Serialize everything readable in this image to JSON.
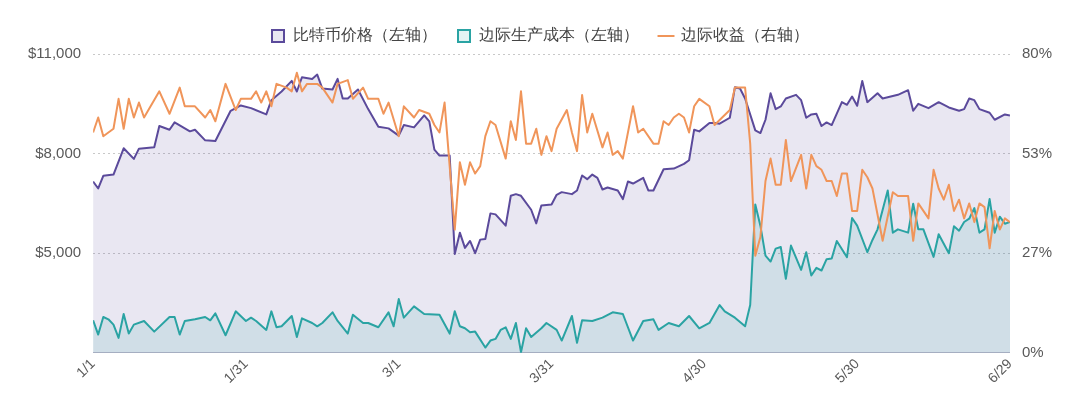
{
  "chart_data": {
    "type": "area",
    "legend": "top",
    "grid": "y",
    "marker": "none",
    "xlim": [
      "--01-01",
      "--06-29"
    ],
    "xticks": [
      {
        "value": "--01-01",
        "label": "1/1"
      },
      {
        "value": "--01-31",
        "label": "1/31"
      },
      {
        "value": "--03-01",
        "label": "3/1"
      },
      {
        "value": "--03-31",
        "label": "3/31"
      },
      {
        "value": "--04-30",
        "label": "4/30"
      },
      {
        "value": "--05-30",
        "label": "5/30"
      },
      {
        "value": "--06-29",
        "label": "6/29"
      }
    ],
    "ylim": [
      2000,
      11000
    ],
    "yticks": [
      {
        "value": 2000,
        "label": null
      },
      {
        "value": 5000,
        "label": "$5,000"
      },
      {
        "value": 8000,
        "label": "$8,000"
      },
      {
        "value": 11000,
        "label": "$11,000"
      }
    ],
    "y2lim": [
      0,
      80
    ],
    "y2ticks": [
      {
        "value": 0,
        "label": "0%"
      },
      {
        "value": 26.67,
        "label": "27%"
      },
      {
        "value": 53.33,
        "label": "53%"
      },
      {
        "value": 80,
        "label": "80%"
      }
    ],
    "series": [
      {
        "name": "比特币价格（左轴）",
        "color": "#5b4a9b",
        "x": [
          "--01-01",
          "--01-02",
          "--01-03",
          "--01-05",
          "--01-07",
          "--01-09",
          "--01-10",
          "--01-13",
          "--01-14",
          "--01-16",
          "--01-17",
          "--01-19",
          "--01-20",
          "--01-21",
          "--01-23",
          "--01-25",
          "--01-28",
          "--01-30",
          "--02-01",
          "--02-04",
          "--02-05",
          "--02-07",
          "--02-09",
          "--02-10",
          "--02-11",
          "--02-13",
          "--02-14",
          "--02-15",
          "--02-17",
          "--02-18",
          "--02-19",
          "--02-20",
          "--02-22",
          "--02-24",
          "--02-26",
          "--02-28",
          "--03-01",
          "--03-02",
          "--03-04",
          "--03-06",
          "--03-07",
          "--03-08",
          "--03-09",
          "--03-11",
          "--03-12",
          "--03-13",
          "--03-14",
          "--03-15",
          "--03-16",
          "--03-17",
          "--03-18",
          "--03-19",
          "--03-20",
          "--03-22",
          "--03-23",
          "--03-24",
          "--03-25",
          "--03-27",
          "--03-28",
          "--03-29",
          "--03-31",
          "--04-01",
          "--04-02",
          "--04-04",
          "--04-05",
          "--04-06",
          "--04-07",
          "--04-08",
          "--04-09",
          "--04-10",
          "--04-11",
          "--04-13",
          "--04-14",
          "--04-15",
          "--04-16",
          "--04-18",
          "--04-19",
          "--04-20",
          "--04-22",
          "--04-24",
          "--04-26",
          "--04-27",
          "--04-28",
          "--04-29",
          "--05-01",
          "--05-02",
          "--05-03",
          "--05-05",
          "--05-06",
          "--05-07",
          "--05-08",
          "--05-10",
          "--05-11",
          "--05-12",
          "--05-13",
          "--05-14",
          "--05-15",
          "--05-16",
          "--05-18",
          "--05-19",
          "--05-20",
          "--05-21",
          "--05-22",
          "--05-23",
          "--05-24",
          "--05-25",
          "--05-27",
          "--05-28",
          "--05-29",
          "--05-30",
          "--05-31",
          "--06-01",
          "--06-03",
          "--06-04",
          "--06-07",
          "--06-09",
          "--06-10",
          "--06-11",
          "--06-13",
          "--06-15",
          "--06-17",
          "--06-19",
          "--06-20",
          "--06-21",
          "--06-22",
          "--06-23",
          "--06-25",
          "--06-26",
          "--06-28",
          "--06-29"
        ],
        "values": [
          7160,
          6950,
          7330,
          7370,
          8160,
          7840,
          8150,
          8190,
          8830,
          8720,
          8940,
          8760,
          8670,
          8720,
          8400,
          8380,
          9290,
          9450,
          9370,
          9180,
          9610,
          9870,
          10190,
          9870,
          10300,
          10250,
          10380,
          9960,
          9930,
          10250,
          9660,
          9660,
          9930,
          9340,
          8810,
          8760,
          8540,
          8860,
          8790,
          9150,
          8970,
          8120,
          7940,
          7940,
          4980,
          5620,
          5160,
          5370,
          5000,
          5410,
          5430,
          6200,
          6170,
          5830,
          6730,
          6780,
          6730,
          6310,
          5900,
          6440,
          6470,
          6760,
          6840,
          6780,
          6890,
          7340,
          7230,
          7370,
          7270,
          6920,
          6980,
          6890,
          6630,
          7160,
          7100,
          7270,
          6890,
          6890,
          7530,
          7550,
          7690,
          7800,
          8720,
          8670,
          8920,
          8920,
          8900,
          9080,
          10000,
          9960,
          9660,
          8700,
          8620,
          9020,
          9820,
          9340,
          9420,
          9660,
          9770,
          9610,
          9080,
          9180,
          9200,
          8830,
          8940,
          8860,
          9550,
          9470,
          9720,
          9440,
          10190,
          9550,
          9820,
          9660,
          9770,
          9910,
          9290,
          9500,
          9370,
          9550,
          9390,
          9290,
          9340,
          9660,
          9610,
          9340,
          9230,
          9020,
          9180,
          9150
        ]
      },
      {
        "name": "边际生产成本（左轴）",
        "color": "#2aa3a3",
        "x": [
          "--01-01",
          "--01-02",
          "--01-03",
          "--01-04",
          "--01-05",
          "--01-06",
          "--01-07",
          "--01-08",
          "--01-09",
          "--01-11",
          "--01-13",
          "--01-16",
          "--01-17",
          "--01-18",
          "--01-19",
          "--01-21",
          "--01-23",
          "--01-24",
          "--01-25",
          "--01-27",
          "--01-29",
          "--01-31",
          "--02-01",
          "--02-02",
          "--02-04",
          "--02-05",
          "--02-06",
          "--02-07",
          "--02-09",
          "--02-10",
          "--02-11",
          "--02-13",
          "--02-14",
          "--02-15",
          "--02-17",
          "--02-18",
          "--02-20",
          "--02-21",
          "--02-23",
          "--02-24",
          "--02-26",
          "--02-28",
          "--02-29",
          "--03-01",
          "--03-02",
          "--03-04",
          "--03-06",
          "--03-09",
          "--03-11",
          "--03-12",
          "--03-13",
          "--03-14",
          "--03-15",
          "--03-16",
          "--03-18",
          "--03-19",
          "--03-20",
          "--03-21",
          "--03-22",
          "--03-23",
          "--03-24",
          "--03-25",
          "--03-26",
          "--03-27",
          "--03-29",
          "--03-30",
          "--04-01",
          "--04-02",
          "--04-04",
          "--04-05",
          "--04-06",
          "--04-08",
          "--04-10",
          "--04-12",
          "--04-14",
          "--04-16",
          "--04-18",
          "--04-20",
          "--04-21",
          "--04-23",
          "--04-25",
          "--04-27",
          "--04-29",
          "--05-01",
          "--05-03",
          "--05-04",
          "--05-06",
          "--05-08",
          "--05-09",
          "--05-10",
          "--05-11",
          "--05-12",
          "--05-13",
          "--05-14",
          "--05-15",
          "--05-16",
          "--05-17",
          "--05-19",
          "--05-20",
          "--05-21",
          "--05-22",
          "--05-23",
          "--05-24",
          "--05-25",
          "--05-26",
          "--05-28",
          "--05-29",
          "--05-30",
          "--06-01",
          "--06-02",
          "--06-03",
          "--06-05",
          "--06-06",
          "--06-07",
          "--06-09",
          "--06-10",
          "--06-11",
          "--06-12",
          "--06-14",
          "--06-15",
          "--06-17",
          "--06-18",
          "--06-19",
          "--06-20",
          "--06-21",
          "--06-22",
          "--06-23",
          "--06-24",
          "--06-25",
          "--06-26",
          "--06-27",
          "--06-28",
          "--06-29"
        ],
        "values": [
          2980,
          2550,
          3080,
          3010,
          2850,
          2450,
          3170,
          2580,
          2850,
          2960,
          2640,
          3080,
          3080,
          2550,
          2960,
          3010,
          3080,
          2980,
          3190,
          2530,
          3250,
          2960,
          3060,
          2960,
          2690,
          3250,
          2770,
          2800,
          3110,
          2480,
          3040,
          2900,
          2800,
          2900,
          3220,
          2960,
          2580,
          3150,
          2900,
          2900,
          2770,
          3220,
          2800,
          3620,
          3060,
          3400,
          3170,
          3150,
          2580,
          3250,
          2800,
          2740,
          2620,
          2640,
          2160,
          2370,
          2420,
          2690,
          2770,
          2420,
          2900,
          2020,
          2740,
          2480,
          2740,
          2900,
          2690,
          2370,
          3110,
          2300,
          2980,
          2960,
          3060,
          3220,
          3170,
          2370,
          2960,
          3010,
          2690,
          2900,
          2800,
          3110,
          2740,
          2900,
          3440,
          3250,
          3060,
          2800,
          3440,
          6470,
          5830,
          4930,
          4750,
          5140,
          5190,
          4230,
          5230,
          4500,
          5030,
          4330,
          4560,
          4480,
          4820,
          4840,
          5370,
          4880,
          6060,
          5830,
          5030,
          5400,
          5720,
          6890,
          5620,
          5720,
          5620,
          6490,
          5720,
          5720,
          4890,
          5570,
          5000,
          5810,
          5680,
          5940,
          6040,
          6360,
          5620,
          5720,
          6630,
          5620,
          6100,
          5890,
          5940
        ]
      },
      {
        "name": "边际收益（右轴）",
        "type": "line",
        "axis": "y2",
        "color": "#f0955a",
        "x": [
          "--01-01",
          "--01-02",
          "--01-03",
          "--01-04",
          "--01-05",
          "--01-06",
          "--01-07",
          "--01-08",
          "--01-09",
          "--01-10",
          "--01-11",
          "--01-14",
          "--01-16",
          "--01-18",
          "--01-19",
          "--01-21",
          "--01-23",
          "--01-24",
          "--01-25",
          "--01-27",
          "--01-29",
          "--01-30",
          "--02-01",
          "--02-02",
          "--02-03",
          "--02-04",
          "--02-05",
          "--02-06",
          "--02-08",
          "--02-09",
          "--02-10",
          "--02-11",
          "--02-12",
          "--02-14",
          "--02-15",
          "--02-17",
          "--02-18",
          "--02-20",
          "--02-21",
          "--02-23",
          "--02-24",
          "--02-26",
          "--02-27",
          "--02-28",
          "--03-01",
          "--03-02",
          "--03-04",
          "--03-05",
          "--03-07",
          "--03-08",
          "--03-09",
          "--03-10",
          "--03-12",
          "--03-13",
          "--03-14",
          "--03-15",
          "--03-16",
          "--03-17",
          "--03-18",
          "--03-19",
          "--03-20",
          "--03-22",
          "--03-23",
          "--03-24",
          "--03-25",
          "--03-26",
          "--03-27",
          "--03-28",
          "--03-29",
          "--03-30",
          "--03-31",
          "--04-01",
          "--04-03",
          "--04-04",
          "--04-05",
          "--04-06",
          "--04-07",
          "--04-08",
          "--04-10",
          "--04-11",
          "--04-12",
          "--04-13",
          "--04-14",
          "--04-16",
          "--04-17",
          "--04-18",
          "--04-20",
          "--04-21",
          "--04-22",
          "--04-23",
          "--04-24",
          "--04-25",
          "--04-26",
          "--04-27",
          "--04-28",
          "--04-29",
          "--05-01",
          "--05-02",
          "--05-05",
          "--05-06",
          "--05-07",
          "--05-08",
          "--05-09",
          "--05-10",
          "--05-11",
          "--05-12",
          "--05-13",
          "--05-14",
          "--05-15",
          "--05-16",
          "--05-17",
          "--05-19",
          "--05-20",
          "--05-21",
          "--05-22",
          "--05-23",
          "--05-24",
          "--05-25",
          "--05-26",
          "--05-27",
          "--05-28",
          "--05-29",
          "--05-30",
          "--05-31",
          "--06-01",
          "--06-02",
          "--06-04",
          "--06-06",
          "--06-07",
          "--06-09",
          "--06-10",
          "--06-11",
          "--06-12",
          "--06-13",
          "--06-14",
          "--06-15",
          "--06-16",
          "--06-17",
          "--06-18",
          "--06-19",
          "--06-20",
          "--06-21",
          "--06-22",
          "--06-23",
          "--06-24",
          "--06-25",
          "--06-26",
          "--06-27",
          "--06-28",
          "--06-29"
        ],
        "values": [
          59,
          63,
          58,
          59,
          60,
          68,
          60,
          68,
          63,
          67,
          63,
          70,
          64,
          71,
          66,
          66,
          63,
          65,
          62,
          72,
          65,
          68,
          68,
          70,
          67,
          70,
          66,
          72,
          71,
          70,
          75,
          70,
          72,
          72,
          71,
          67,
          72,
          73,
          68,
          71,
          68,
          68,
          64,
          67,
          58,
          66,
          63,
          65,
          64,
          61,
          59,
          67,
          33,
          51,
          45,
          51,
          48,
          50,
          58,
          62,
          61,
          52,
          62,
          57,
          70,
          56,
          56,
          60,
          53,
          58,
          54,
          60,
          65,
          59,
          54,
          69,
          59,
          64,
          55,
          59,
          53,
          54,
          52,
          66,
          59,
          60,
          56,
          56,
          62,
          61,
          63,
          64,
          63,
          59,
          66,
          68,
          66,
          61,
          65,
          71,
          71,
          71,
          56,
          26,
          31,
          46,
          52,
          45,
          45,
          57,
          46,
          53,
          44,
          53,
          50,
          49,
          46,
          46,
          42,
          48,
          48,
          38,
          38,
          49,
          47,
          44,
          30,
          43,
          42,
          42,
          30,
          40,
          38,
          36,
          49,
          44,
          41,
          45,
          38,
          41,
          36,
          40,
          35,
          40,
          39,
          28,
          38,
          33,
          36,
          35
        ]
      }
    ]
  }
}
